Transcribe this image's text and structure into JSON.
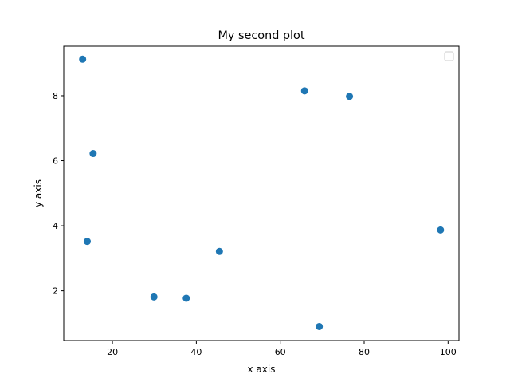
{
  "chart_data": {
    "type": "scatter",
    "title": "My second plot",
    "xlabel": "x axis",
    "ylabel": "y axis",
    "xlim": [
      8.4,
      102.6
    ],
    "ylim": [
      0.47,
      9.52
    ],
    "xticks": [
      20,
      40,
      60,
      80,
      100
    ],
    "yticks": [
      2,
      4,
      6,
      8
    ],
    "grid": false,
    "legend": {
      "placement": "top-right",
      "entries": []
    },
    "series": [
      {
        "color": "#1f77b4",
        "x": [
          12.9,
          14.0,
          15.4,
          29.9,
          37.6,
          45.5,
          65.8,
          69.3,
          76.5,
          98.2
        ],
        "y": [
          9.12,
          3.52,
          6.22,
          1.81,
          1.77,
          3.21,
          8.15,
          0.9,
          7.98,
          3.87
        ]
      }
    ]
  }
}
